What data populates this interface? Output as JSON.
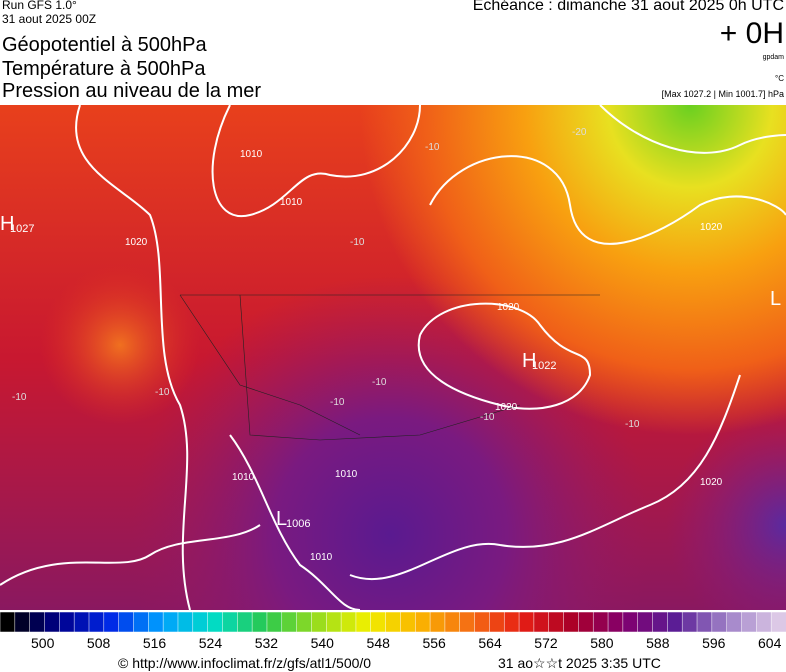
{
  "header": {
    "run": "Run GFS 1.0°",
    "run_date": "31 aout 2025 00Z",
    "title_lines": [
      "Géopotentiel à 500hPa",
      "Température à 500hPa",
      "Pression au niveau de la mer"
    ],
    "forecast": "Echéance : dimanche 31 aout 2025 0h UTC",
    "lead": "+ 0H",
    "unit_geo": "gpdam",
    "unit_temp": "°C",
    "pressure_range": "[Max 1027.2 | Min 1001.7] hPa"
  },
  "map": {
    "centers": [
      {
        "letter": "H",
        "value": "1027"
      },
      {
        "letter": "H",
        "value": "1022"
      },
      {
        "letter": "L",
        "value": "1006"
      },
      {
        "letter": "L"
      }
    ],
    "isobar_labels": [
      "1010",
      "1010",
      "1020",
      "1020",
      "1020",
      "1020",
      "1010",
      "1010",
      "1010",
      "1020"
    ],
    "isotherm_labels": [
      "-20",
      "-10",
      "-10",
      "-10",
      "-10",
      "-10",
      "-10",
      "-10",
      "-10"
    ]
  },
  "colorbar": {
    "labels": [
      "500",
      "508",
      "516",
      "524",
      "532",
      "540",
      "548",
      "556",
      "564",
      "572",
      "580",
      "588",
      "596",
      "604"
    ]
  },
  "footer": {
    "url": "© http://www.infoclimat.fr/z/gfs/atl1/500/0",
    "timestamp": "31 ao☆☆t 2025  3:35 UTC"
  }
}
